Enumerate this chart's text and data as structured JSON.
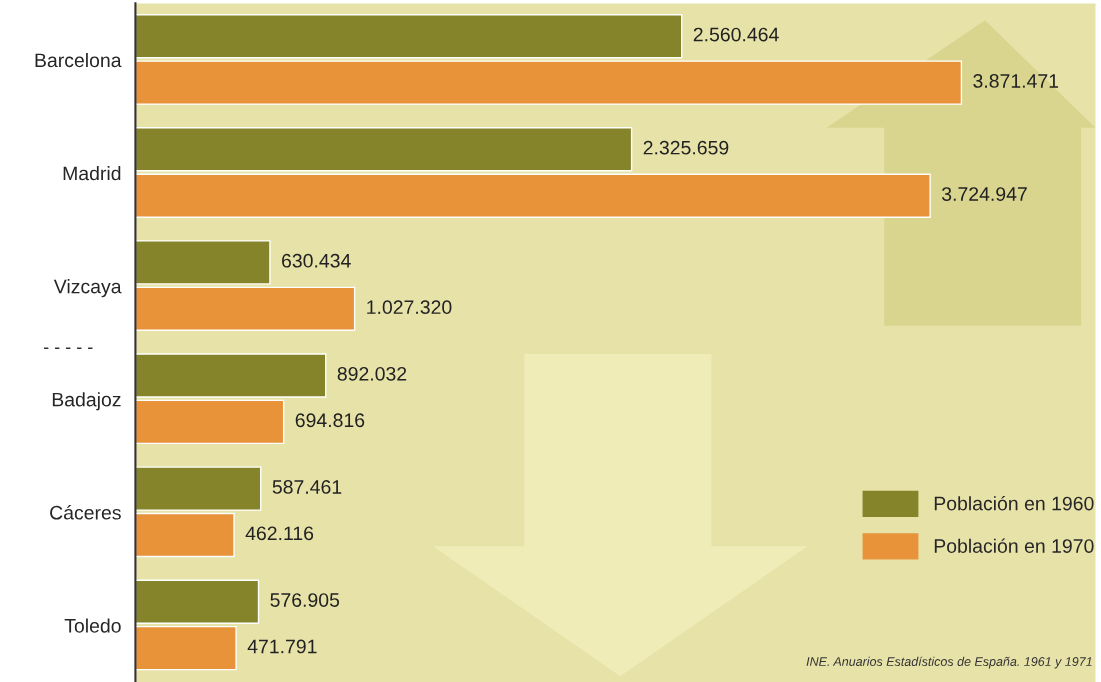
{
  "chart_data": {
    "type": "bar",
    "orientation": "horizontal",
    "categories": [
      "Barcelona",
      "Madrid",
      "Vizcaya",
      "Badajoz",
      "Cáceres",
      "Toledo"
    ],
    "series": [
      {
        "name": "Población en 1960",
        "color": "#86842a",
        "values": [
          2560464,
          2325659,
          630434,
          892032,
          587461,
          576905
        ],
        "value_labels": [
          "2.560.464",
          "2.325.659",
          "630.434",
          "892.032",
          "587.461",
          "576.905"
        ]
      },
      {
        "name": "Población en 1970",
        "color": "#e8933a",
        "values": [
          3871471,
          3724947,
          1027320,
          694816,
          462116,
          471791
        ],
        "value_labels": [
          "3.871.471",
          "3.724.947",
          "1.027.320",
          "694.816",
          "462.116",
          "471.791"
        ]
      }
    ],
    "xlim": [
      0,
      4500000
    ],
    "tick_labels": "y",
    "legend": "bottom right",
    "grid": false,
    "annotations": [
      "- - - - -",
      "INE. Anuarios Estadísticos de España. 1961 y 1971"
    ]
  }
}
